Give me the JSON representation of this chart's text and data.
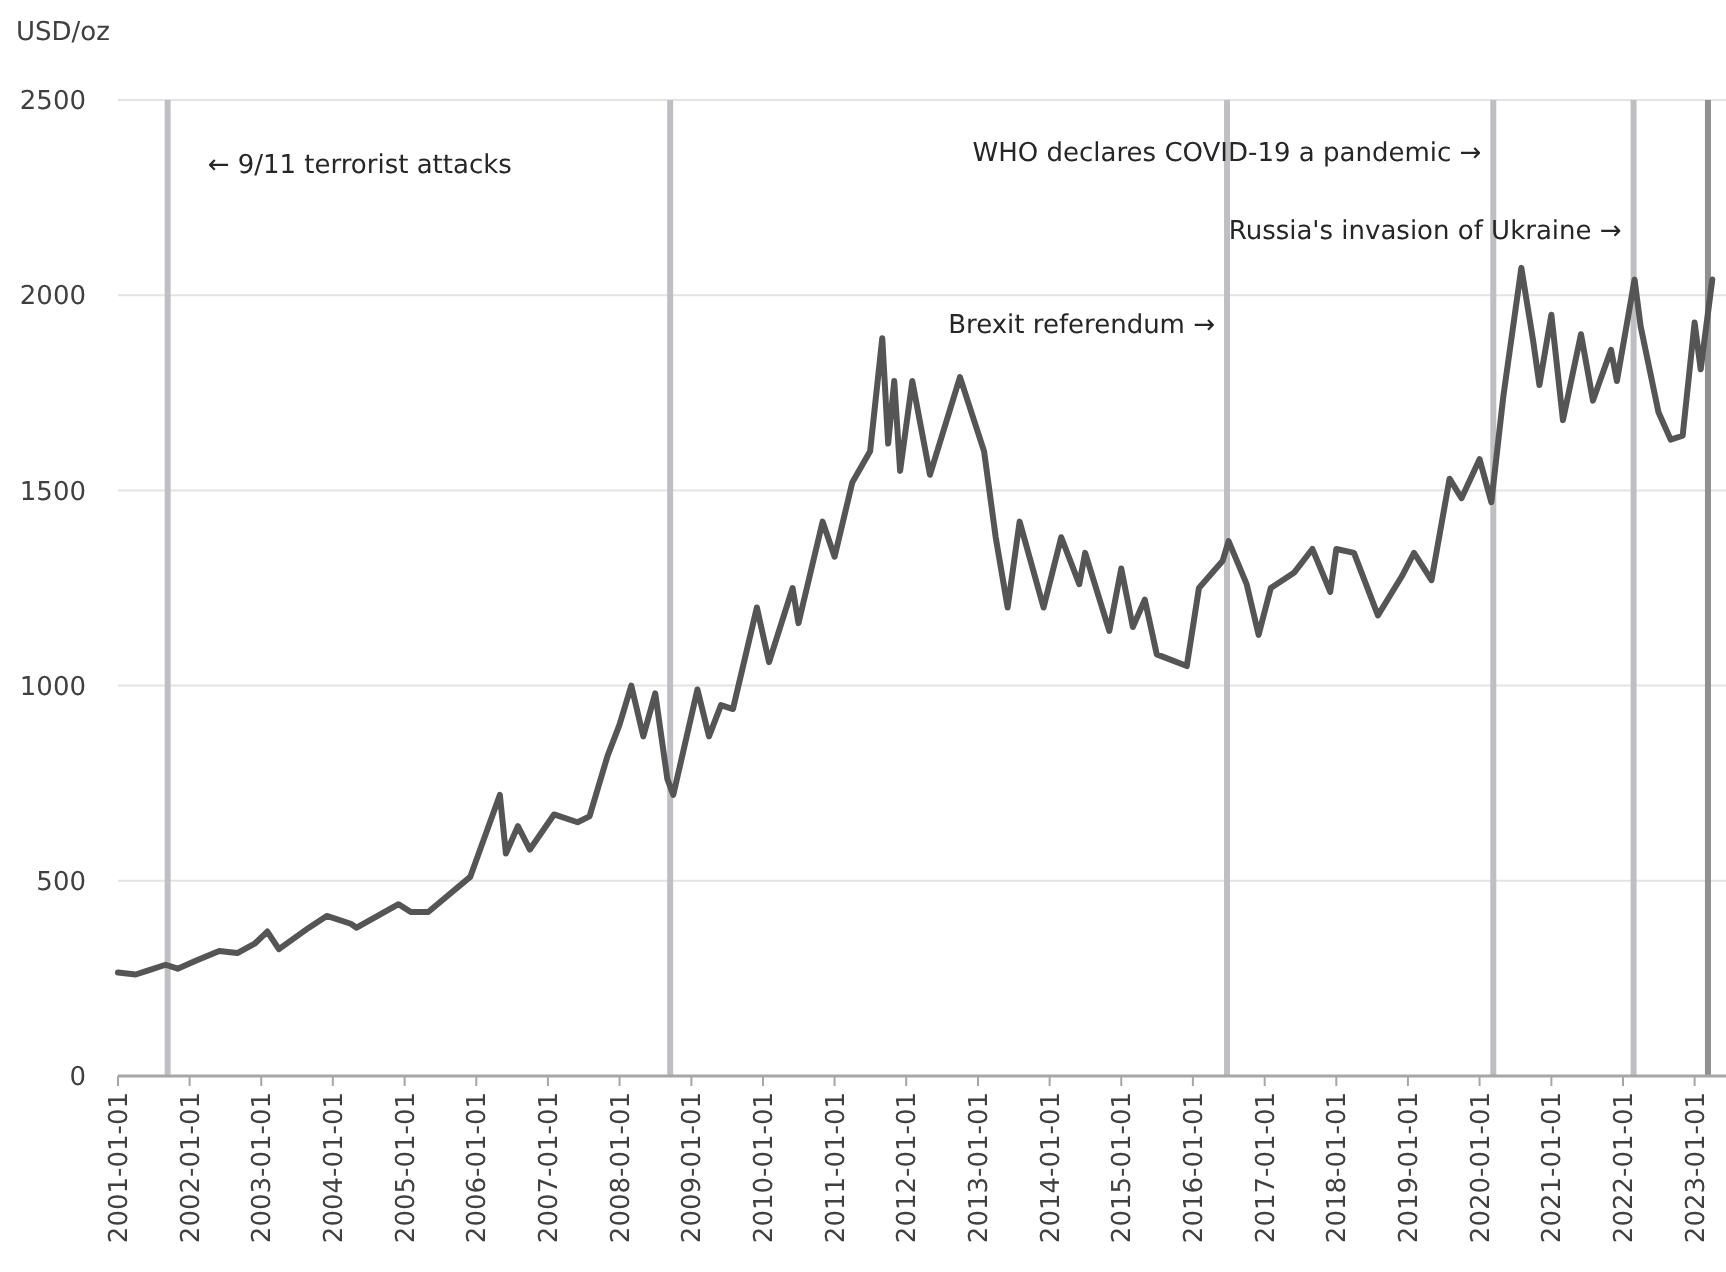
{
  "chart_data": {
    "type": "line",
    "ylabel": "USD/oz",
    "x": [
      "2001-01",
      "2001-04",
      "2001-06",
      "2001-09",
      "2001-11",
      "2002-02",
      "2002-06",
      "2002-09",
      "2002-12",
      "2003-02",
      "2003-04",
      "2003-09",
      "2003-12",
      "2004-04",
      "2004-05",
      "2004-12",
      "2005-02",
      "2005-05",
      "2005-12",
      "2006-05",
      "2006-06",
      "2006-08",
      "2006-10",
      "2007-02",
      "2007-06",
      "2007-08",
      "2007-11",
      "2008-01",
      "2008-03",
      "2008-05",
      "2008-07",
      "2008-09",
      "2008-10",
      "2009-02",
      "2009-04",
      "2009-06",
      "2009-08",
      "2009-12",
      "2010-02",
      "2010-06",
      "2010-07",
      "2010-11",
      "2011-01",
      "2011-04",
      "2011-07",
      "2011-09",
      "2011-10",
      "2011-11",
      "2011-12",
      "2012-02",
      "2012-05",
      "2012-10",
      "2013-02",
      "2013-04",
      "2013-06",
      "2013-08",
      "2013-12",
      "2014-03",
      "2014-06",
      "2014-07",
      "2014-11",
      "2015-01",
      "2015-03",
      "2015-05",
      "2015-07",
      "2015-12",
      "2016-02",
      "2016-06",
      "2016-07",
      "2016-10",
      "2016-12",
      "2017-02",
      "2017-06",
      "2017-09",
      "2017-12",
      "2018-01",
      "2018-04",
      "2018-08",
      "2018-12",
      "2019-02",
      "2019-05",
      "2019-08",
      "2019-10",
      "2020-01",
      "2020-03",
      "2020-05",
      "2020-08",
      "2020-10",
      "2020-11",
      "2021-01",
      "2021-03",
      "2021-06",
      "2021-08",
      "2021-11",
      "2021-12",
      "2022-03",
      "2022-04",
      "2022-07",
      "2022-09",
      "2022-11",
      "2023-01",
      "2023-02",
      "2023-04"
    ],
    "series": [
      {
        "color": "#555555",
        "values": [
          265,
          260,
          270,
          285,
          275,
          295,
          320,
          315,
          340,
          370,
          325,
          380,
          410,
          390,
          380,
          440,
          420,
          420,
          510,
          720,
          570,
          640,
          580,
          670,
          650,
          665,
          820,
          900,
          1000,
          870,
          980,
          760,
          720,
          990,
          870,
          950,
          940,
          1200,
          1060,
          1250,
          1160,
          1420,
          1330,
          1520,
          1600,
          1890,
          1620,
          1780,
          1550,
          1780,
          1540,
          1790,
          1600,
          1380,
          1200,
          1420,
          1200,
          1380,
          1260,
          1340,
          1140,
          1300,
          1150,
          1220,
          1080,
          1050,
          1250,
          1320,
          1370,
          1260,
          1130,
          1250,
          1290,
          1350,
          1240,
          1350,
          1340,
          1180,
          1280,
          1340,
          1270,
          1530,
          1480,
          1580,
          1470,
          1740,
          2070,
          1880,
          1770,
          1950,
          1680,
          1900,
          1730,
          1860,
          1780,
          2040,
          1920,
          1700,
          1630,
          1640,
          1930,
          1810,
          2040
        ]
      }
    ],
    "xlim": [
      "2001-01-01",
      "2023-04-20"
    ],
    "xticks": [
      "2001-01-01",
      "2002-01-01",
      "2003-01-01",
      "2004-01-01",
      "2005-01-01",
      "2006-01-01",
      "2007-01-01",
      "2008-01-01",
      "2009-01-01",
      "2010-01-01",
      "2011-01-01",
      "2012-01-01",
      "2013-01-01",
      "2014-01-01",
      "2015-01-01",
      "2016-01-01",
      "2017-01-01",
      "2018-01-01",
      "2019-01-01",
      "2020-01-01",
      "2021-01-01",
      "2022-01-01",
      "2023-01-01"
    ],
    "ylim": [
      0,
      2500
    ],
    "yticks": [
      0,
      500,
      1000,
      1500,
      2000,
      2500
    ],
    "grid": "y",
    "marker": "none",
    "line_style": "solid",
    "ref_lines": [
      {
        "axis": "x",
        "value": "2001-09-11",
        "label": "← 9/11 terrorist attacks",
        "color": "#bfbfc3"
      },
      {
        "axis": "x",
        "value": "2008-09-15",
        "color": "#bfbfc3"
      },
      {
        "axis": "x",
        "value": "2016-06-23",
        "label": "Brexit referendum →",
        "color": "#bfbfc3"
      },
      {
        "axis": "x",
        "value": "2020-03-11",
        "label": "WHO declares COVID-19 a pandemic →",
        "color": "#bfbfc3"
      },
      {
        "axis": "x",
        "value": "2022-02-24",
        "label": "Russia's invasion of Ukraine  →",
        "color": "#bfbfc3"
      },
      {
        "axis": "x",
        "value": "2023-03-10",
        "color": "#909090"
      }
    ]
  }
}
